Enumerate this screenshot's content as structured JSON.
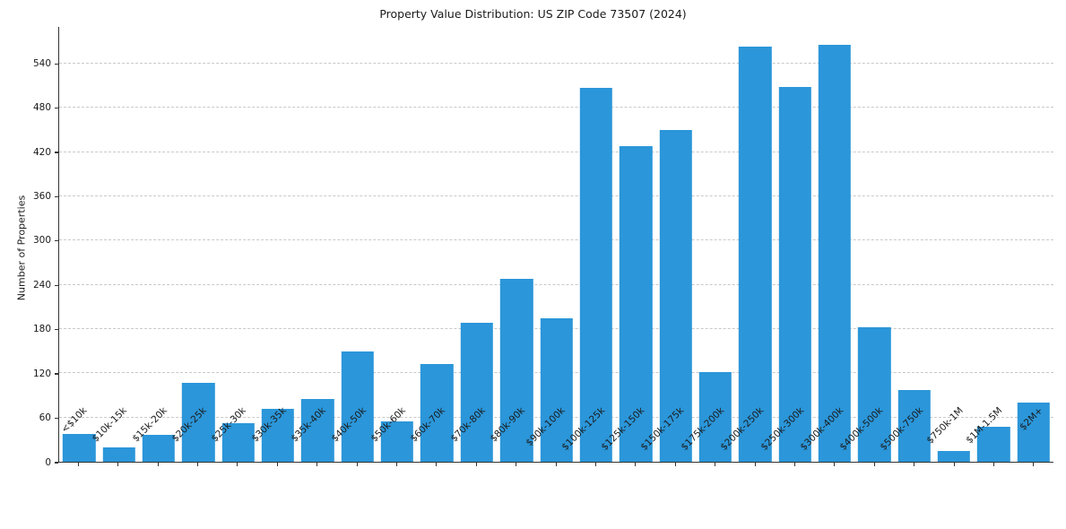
{
  "chart_data": {
    "type": "bar",
    "title": "Property Value Distribution: US ZIP Code 73507 (2024)",
    "xlabel": "",
    "ylabel": "Number of Properties",
    "categories": [
      "<$10k",
      "$10k-15k",
      "$15k-20k",
      "$20k-25k",
      "$25k-30k",
      "$30k-35k",
      "$35k-40k",
      "$40k-50k",
      "$50k-60k",
      "$60k-70k",
      "$70k-80k",
      "$80k-90k",
      "$90k-100k",
      "$100k-125k",
      "$125k-150k",
      "$150k-175k",
      "$175k-200k",
      "$200k-250k",
      "$250k-300k",
      "$300k-400k",
      "$400k-500k",
      "$500k-750k",
      "$750k-1M",
      "$1M-1.5M",
      "$2M+"
    ],
    "values": [
      38,
      20,
      36,
      107,
      52,
      72,
      85,
      150,
      55,
      133,
      189,
      248,
      195,
      507,
      428,
      450,
      122,
      563,
      508,
      566,
      182,
      97,
      15,
      47,
      80
    ],
    "yticks": [
      0,
      60,
      120,
      180,
      240,
      300,
      360,
      420,
      480,
      540
    ],
    "ylim": [
      0,
      590
    ],
    "grid": "horizontal-dashed",
    "legend": "none",
    "bar_color": "#2b96d9"
  }
}
